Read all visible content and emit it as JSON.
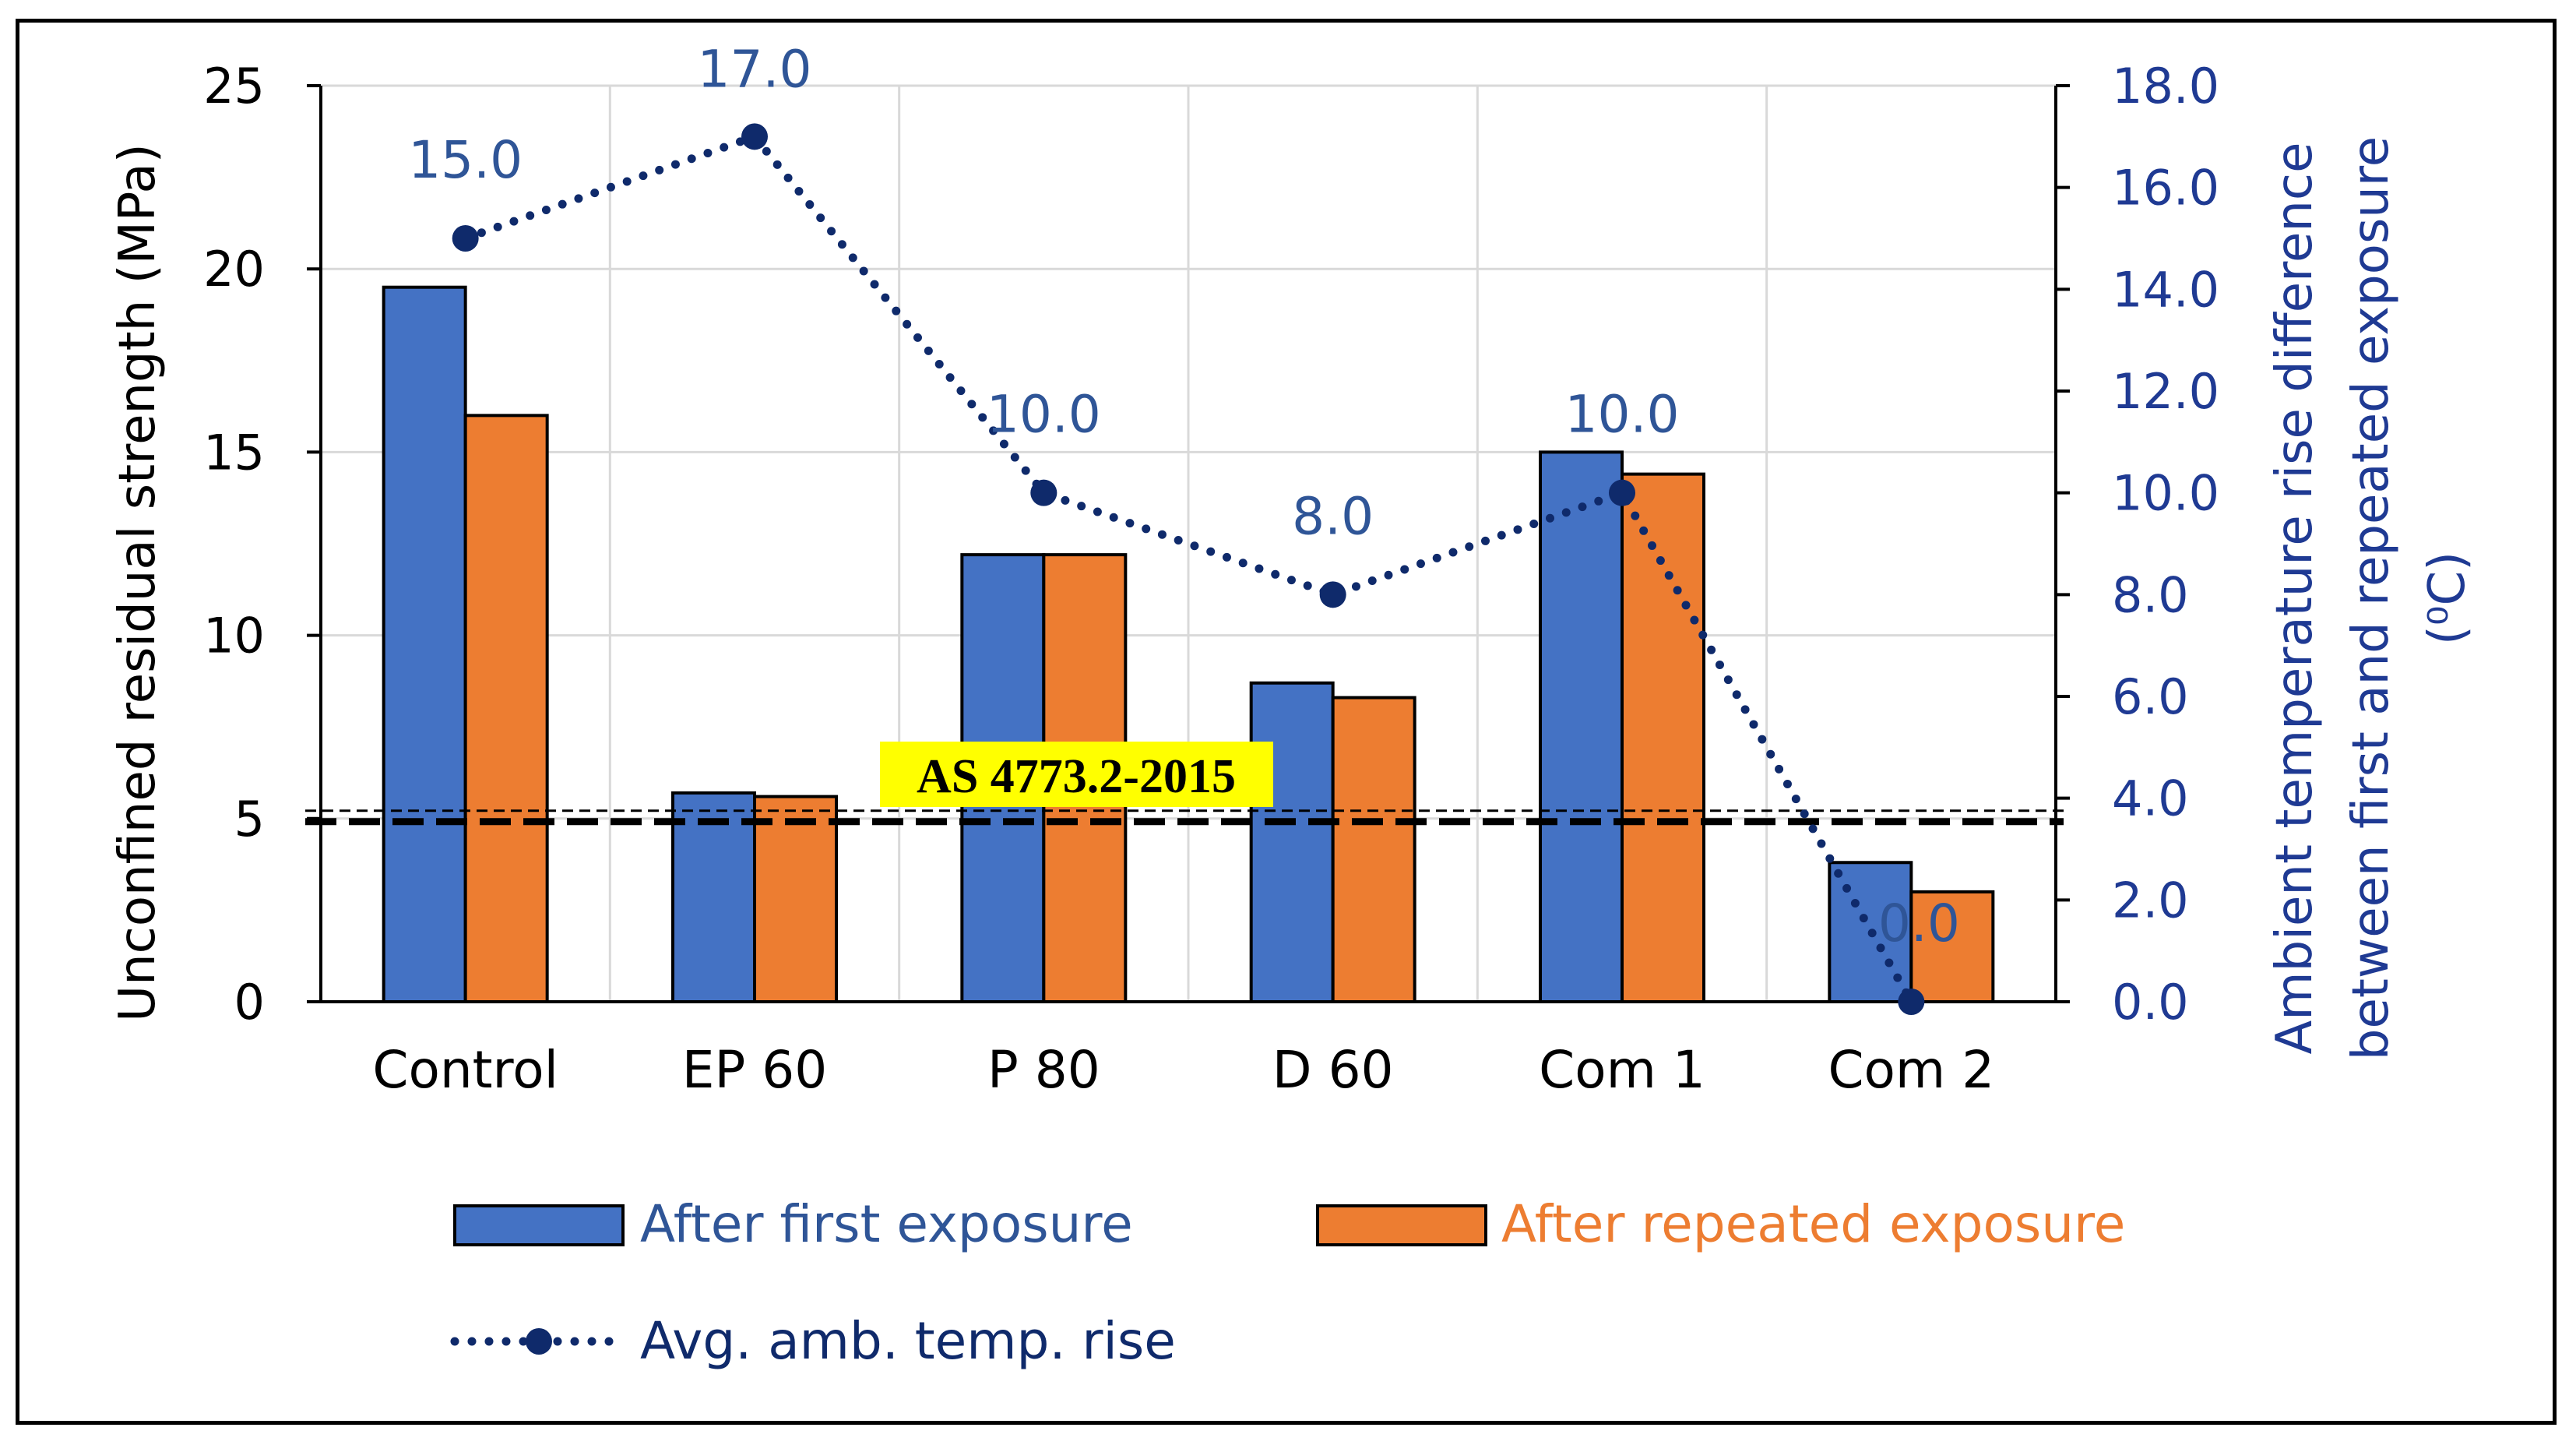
{
  "chart_data": {
    "type": "bar",
    "categories": [
      "Control",
      "EP 60",
      "P 80",
      "D 60",
      "Com 1",
      "Com 2"
    ],
    "series": [
      {
        "name": "After first exposure",
        "axis": "left",
        "color": "#4472c4",
        "values": [
          19.5,
          5.7,
          12.2,
          8.7,
          15.0,
          3.8
        ]
      },
      {
        "name": "After repeated exposure",
        "axis": "left",
        "color": "#ed7d31",
        "values": [
          16.0,
          5.6,
          12.2,
          8.3,
          14.4,
          3.0
        ]
      },
      {
        "name": "Avg. amb. temp. rise",
        "axis": "right",
        "type": "line",
        "style": "dotted",
        "color": "#0f2a6b",
        "values": [
          15.0,
          17.0,
          10.0,
          8.0,
          10.0,
          0.0
        ],
        "labels": [
          "15.0",
          "17.0",
          "10.0",
          "8.0",
          "10.0",
          "0.0"
        ]
      }
    ],
    "ylabel": "Unconfined residual strength (MPa)",
    "ylim": [
      0,
      25
    ],
    "yticks": [
      "0",
      "5",
      "10",
      "15",
      "20",
      "25"
    ],
    "y2label_line1": "Ambient temperature rise difference",
    "y2label_line2": "between first and repeated exposure",
    "y2label_unit": "(⁰C)",
    "y2lim": [
      0,
      18
    ],
    "y2ticks": [
      "0.0",
      "2.0",
      "4.0",
      "6.0",
      "8.0",
      "10.0",
      "12.0",
      "14.0",
      "16.0",
      "18.0"
    ],
    "reference_line": {
      "label": "AS 4773.2-2015",
      "value": 5,
      "label_bg": "#ffff00"
    },
    "grid": true,
    "legend_position": "bottom"
  }
}
